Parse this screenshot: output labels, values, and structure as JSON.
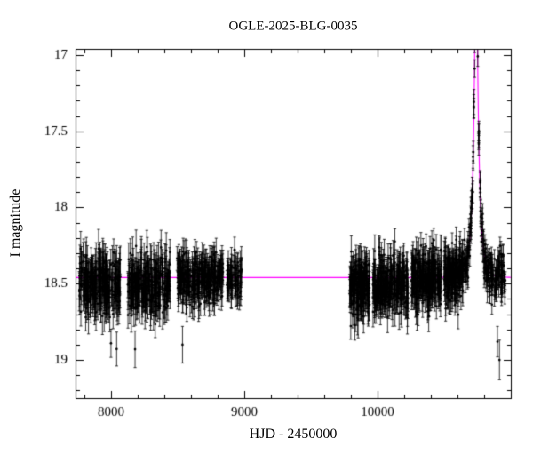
{
  "chart_data": {
    "type": "scatter",
    "title": "OGLE-2025-BLG-0035",
    "xlabel": "HJD - 2450000",
    "ylabel": "I magnitude",
    "xlim": [
      7733,
      11000
    ],
    "ylim": [
      19.25,
      16.96
    ],
    "x_major_ticks": [
      8000,
      9000,
      10000
    ],
    "x_tick_labels": [
      "8000",
      "9000",
      "10000"
    ],
    "x_minor_step": 200,
    "y_major_ticks": [
      17,
      17.5,
      18,
      18.5,
      19
    ],
    "y_tick_labels": [
      "17",
      "17.5",
      "18",
      "18.5",
      "19"
    ],
    "y_minor_step": 0.1,
    "grid": false,
    "legend": null,
    "colors": {
      "background": "#ffffff",
      "data": "#000000",
      "model": "#ff00ff",
      "frame": "#000000"
    },
    "model": {
      "kind": "paczynski",
      "t0": 10740,
      "tE": 42,
      "u0": 0.03,
      "baseline_mag": 18.46
    },
    "seasons": [
      {
        "t_start": 7760,
        "t_end": 8070,
        "n": 240,
        "mag": 18.5,
        "scatter": 0.1,
        "err": 0.11,
        "follow_model": false
      },
      {
        "t_start": 8125,
        "t_end": 8445,
        "n": 250,
        "mag": 18.49,
        "scatter": 0.1,
        "err": 0.1,
        "follow_model": false
      },
      {
        "t_start": 8495,
        "t_end": 8840,
        "n": 300,
        "mag": 18.47,
        "scatter": 0.08,
        "err": 0.08,
        "follow_model": false
      },
      {
        "t_start": 8868,
        "t_end": 8985,
        "n": 70,
        "mag": 18.47,
        "scatter": 0.07,
        "err": 0.08,
        "follow_model": false
      },
      {
        "t_start": 9790,
        "t_end": 9940,
        "n": 150,
        "mag": 18.52,
        "scatter": 0.11,
        "err": 0.1,
        "follow_model": false
      },
      {
        "t_start": 9965,
        "t_end": 10230,
        "n": 250,
        "mag": 18.5,
        "scatter": 0.09,
        "err": 0.09,
        "follow_model": false
      },
      {
        "t_start": 10255,
        "t_end": 10480,
        "n": 240,
        "mag": 18.47,
        "scatter": 0.09,
        "err": 0.09,
        "follow_model": false
      },
      {
        "t_start": 10498,
        "t_end": 10642,
        "n": 170,
        "mag": 18.45,
        "scatter": 0.08,
        "err": 0.08,
        "follow_model": true
      },
      {
        "t_start": 10648,
        "t_end": 10962,
        "n": 210,
        "mag": 18.45,
        "scatter": 0.07,
        "err": 0.07,
        "follow_model": true
      }
    ],
    "outliers": [
      [
        8180,
        18.93,
        0.12
      ],
      [
        8536,
        18.9,
        0.12
      ],
      [
        10900,
        18.88,
        0.1
      ],
      [
        10915,
        19.0,
        0.13
      ]
    ]
  }
}
